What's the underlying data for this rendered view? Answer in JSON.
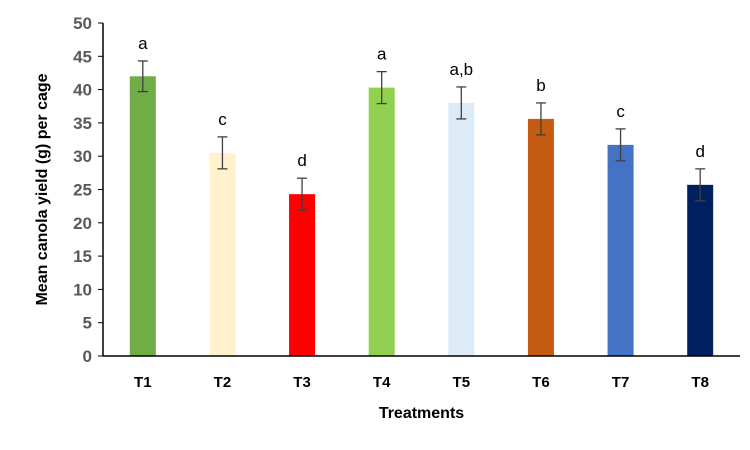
{
  "chart_data": {
    "type": "bar",
    "title": "",
    "xlabel": "Treatments",
    "ylabel": "Mean canola yield (g) per cage",
    "ylim": [
      0,
      50
    ],
    "yticks": [
      0,
      5,
      10,
      15,
      20,
      25,
      30,
      35,
      40,
      45,
      50
    ],
    "grid": false,
    "legend": "none",
    "categories": [
      "T1",
      "T2",
      "T3",
      "T4",
      "T5",
      "T6",
      "T7",
      "T8"
    ],
    "values": [
      42.0,
      30.5,
      24.3,
      40.3,
      38.0,
      35.6,
      31.7,
      25.7
    ],
    "error": [
      2.3,
      2.4,
      2.4,
      2.4,
      2.4,
      2.4,
      2.4,
      2.4
    ],
    "significance_labels": [
      "a",
      "c",
      "d",
      "a",
      "a,b",
      "b",
      "c",
      "d"
    ],
    "colors": [
      "#70AD47",
      "#FFF2CC",
      "#FF0000",
      "#92D050",
      "#DDEBF7",
      "#C55A11",
      "#4472C4",
      "#002060"
    ]
  }
}
